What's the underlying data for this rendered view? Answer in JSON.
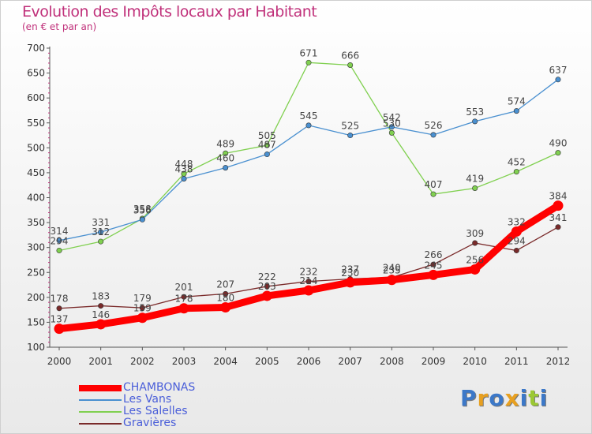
{
  "title": "Evolution des Impôts locaux par Habitant",
  "subtitle": "(en € et par an)",
  "logo": {
    "text": "Proxiti",
    "colors": [
      "#3c78c8",
      "#e8a020",
      "#3c78c8",
      "#e8a020",
      "#3c78c8",
      "#9bc832",
      "#3c78c8"
    ]
  },
  "chart_data": {
    "type": "line",
    "x": [
      "2000",
      "2001",
      "2002",
      "2003",
      "2004",
      "2005",
      "2006",
      "2007",
      "2008",
      "2009",
      "2010",
      "2011",
      "2012"
    ],
    "ylim": [
      100,
      700
    ],
    "yticks": [
      "100",
      "150",
      "200",
      "250",
      "300",
      "350",
      "400",
      "450",
      "500",
      "550",
      "600",
      "650",
      "700"
    ],
    "grid": false,
    "legend_position": "bottom-left",
    "series": [
      {
        "name": "CHAMBONAS",
        "color": "#ff0000",
        "values": [
          137,
          146,
          159,
          178,
          180,
          203,
          214,
          230,
          235,
          245,
          256,
          332,
          384
        ],
        "labels": [
          "137",
          "146",
          "159",
          "178",
          "180",
          "203",
          "214",
          "230",
          "235",
          "245",
          "256",
          "332",
          "384"
        ]
      },
      {
        "name": "Les Vans",
        "color": "#4a90d0",
        "values": [
          314,
          331,
          356,
          438,
          460,
          487,
          545,
          525,
          542,
          526,
          553,
          574,
          637
        ],
        "labels": [
          "314",
          "331",
          "356",
          "438",
          "460",
          "487",
          "545",
          "525",
          "542",
          "526",
          "553",
          "574",
          "637"
        ]
      },
      {
        "name": "Les Salelles",
        "color": "#80d050",
        "values": [
          294,
          312,
          358,
          448,
          489,
          505,
          671,
          666,
          530,
          407,
          419,
          452,
          490
        ],
        "labels": [
          "294",
          "312",
          "358",
          "448",
          "489",
          "505",
          "671",
          "666",
          "530",
          "407",
          "419",
          "452",
          "490"
        ]
      },
      {
        "name": "Gravières",
        "color": "#7a2a2a",
        "values": [
          178,
          183,
          179,
          201,
          207,
          222,
          232,
          237,
          240,
          266,
          309,
          294,
          341
        ],
        "labels": [
          "178",
          "183",
          "179",
          "201",
          "207",
          "222",
          "232",
          "237",
          "240",
          "266",
          "309",
          "294",
          "341"
        ]
      }
    ]
  }
}
